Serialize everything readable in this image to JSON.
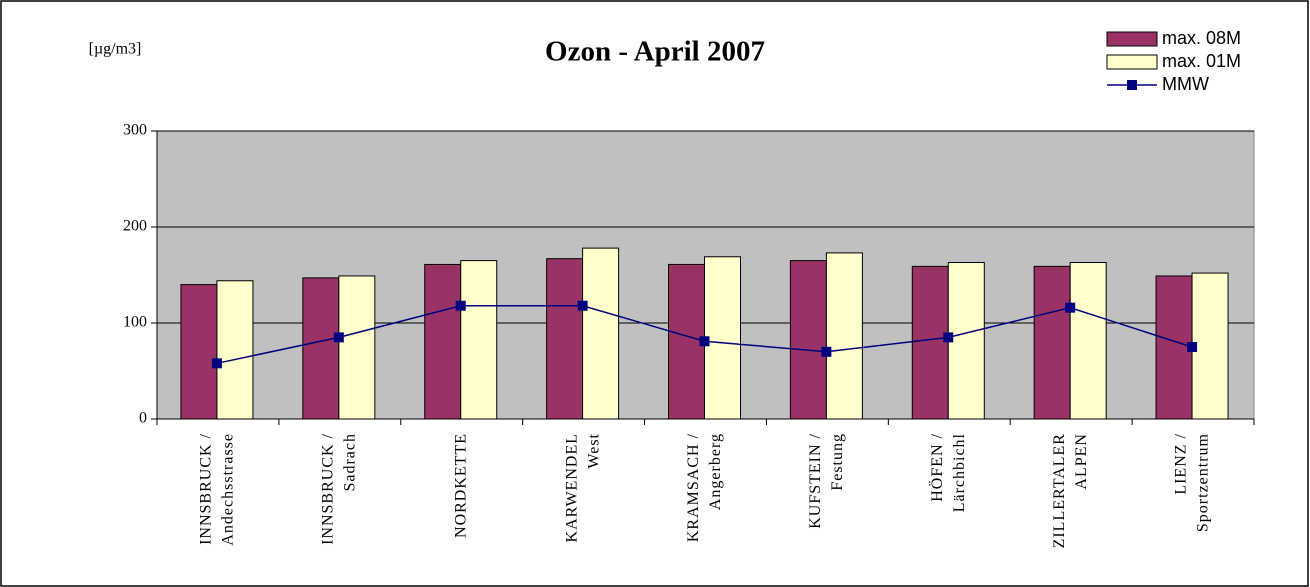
{
  "chart_data": {
    "type": "bar",
    "title": "Ozon - April 2007",
    "y_label": "[µg/m3]",
    "categories": [
      [
        "INNSBRUCK /",
        "Andechsstrasse"
      ],
      [
        "INNSBRUCK /",
        "Sadrach"
      ],
      [
        "NORDKETTE"
      ],
      [
        "KARWENDEL",
        "West"
      ],
      [
        "KRAMSACH /",
        "Angerberg"
      ],
      [
        "KUFSTEIN /",
        "Festung"
      ],
      [
        "HÖFEN /",
        "Lärchbichl"
      ],
      [
        "ZILLERTALER",
        "ALPEN"
      ],
      [
        "LIENZ /",
        "Sportzentrum"
      ]
    ],
    "series": [
      {
        "name": "max. 08M",
        "type": "bar",
        "color": "#993366",
        "values": [
          140,
          147,
          161,
          167,
          161,
          165,
          159,
          159,
          149
        ]
      },
      {
        "name": "max. 01M",
        "type": "bar",
        "color": "#ffffcc",
        "values": [
          144,
          149,
          165,
          178,
          169,
          173,
          163,
          163,
          152
        ]
      },
      {
        "name": "MMW",
        "type": "line",
        "color": "#000080",
        "values": [
          58,
          85,
          118,
          118,
          81,
          70,
          85,
          116,
          75
        ]
      }
    ],
    "ylim": [
      0,
      300
    ],
    "yticks": [
      0,
      100,
      200,
      300
    ],
    "grid": true,
    "plot_background": "#c0c0c0",
    "legend": "top-right"
  }
}
